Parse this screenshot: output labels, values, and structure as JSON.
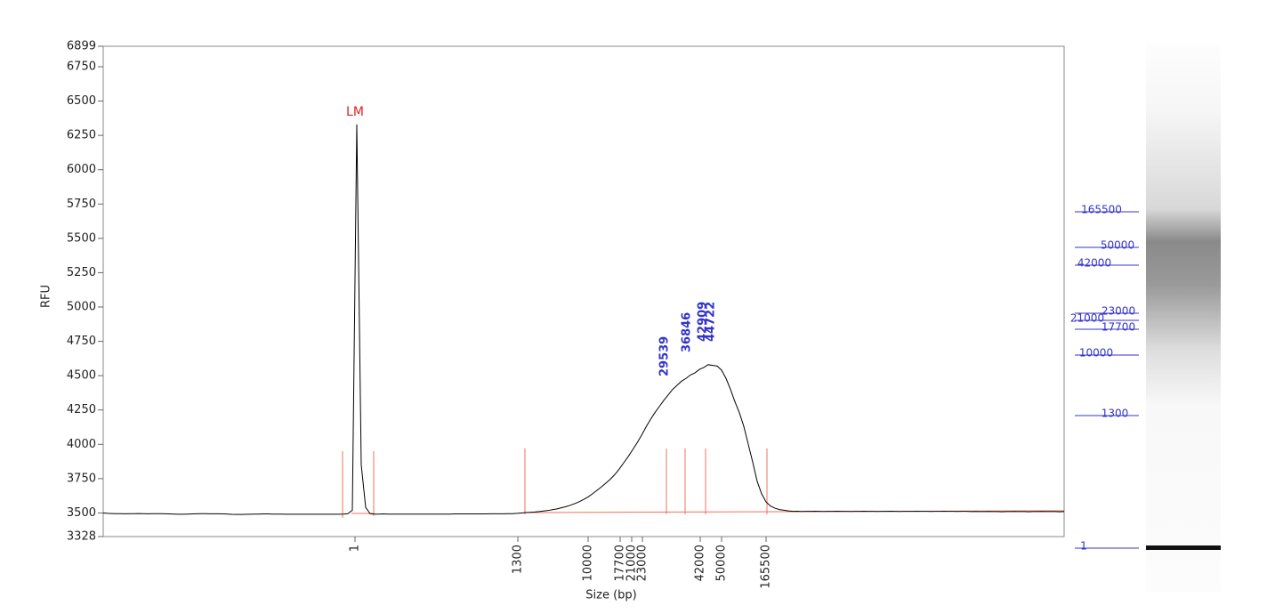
{
  "chart_data": {
    "type": "line",
    "ylabel": "RFU",
    "xlabel": "Size (bp)",
    "marker_label": "LM",
    "ylim": [
      3328,
      6899
    ],
    "yticks": [
      3328,
      3500,
      3750,
      4000,
      4250,
      4500,
      4750,
      5000,
      5250,
      5500,
      5750,
      6000,
      6250,
      6500,
      6750,
      6899
    ],
    "xticks": [
      1,
      1300,
      10000,
      17700,
      21000,
      23000,
      42000,
      50000,
      165500
    ],
    "color": "#000000",
    "trace": {
      "values": [
        3500,
        3497,
        3496,
        3495,
        3495,
        3494,
        3495,
        3495,
        3496,
        3495,
        3494,
        3495,
        3495,
        3495,
        3494,
        3493,
        3492,
        3491,
        3491,
        3492,
        3493,
        3494,
        3495,
        3495,
        3494,
        3494,
        3494,
        3493,
        3492,
        3490,
        3489,
        3489,
        3490,
        3491,
        3492,
        3492,
        3493,
        3493,
        3492,
        3492,
        3492,
        3491,
        3491,
        3491,
        3491,
        3491,
        3491,
        3491,
        3491,
        3491,
        3491,
        3491,
        3491,
        3491,
        3492,
        3495,
        3520,
        6330,
        3850,
        3540,
        3495,
        3492,
        3492,
        3493,
        3492,
        3492,
        3492,
        3492,
        3492,
        3492,
        3492,
        3492,
        3492,
        3492,
        3492,
        3492,
        3492,
        3492,
        3492,
        3493,
        3493,
        3493,
        3493,
        3493,
        3493,
        3493,
        3493,
        3494,
        3494,
        3494,
        3494,
        3495,
        3495,
        3497,
        3500,
        3503,
        3505,
        3507,
        3510,
        3514,
        3518,
        3524,
        3530,
        3538,
        3546,
        3556,
        3568,
        3582,
        3598,
        3617,
        3640,
        3665,
        3690,
        3718,
        3746,
        3780,
        3820,
        3865,
        3910,
        3960,
        4010,
        4065,
        4125,
        4180,
        4230,
        4275,
        4320,
        4360,
        4400,
        4430,
        4460,
        4480,
        4505,
        4520,
        4545,
        4560,
        4580,
        4575,
        4570,
        4540,
        4480,
        4400,
        4310,
        4230,
        4130,
        4000,
        3870,
        3730,
        3640,
        3580,
        3550,
        3535,
        3525,
        3520,
        3515,
        3512,
        3513,
        3511,
        3512,
        3512,
        3513,
        3512,
        3511,
        3512,
        3512,
        3513,
        3512,
        3512,
        3511,
        3512,
        3512,
        3513,
        3512,
        3512,
        3511,
        3512,
        3512,
        3513,
        3512,
        3511,
        3512,
        3512,
        3512,
        3513,
        3512,
        3512,
        3511,
        3512,
        3512,
        3513,
        3512,
        3512,
        3511,
        3512,
        3512,
        3510,
        3511,
        3510,
        3510,
        3511,
        3510,
        3510,
        3509,
        3510,
        3510,
        3511,
        3510,
        3510,
        3509,
        3510,
        3510,
        3511,
        3510,
        3510,
        3510,
        3509,
        3510
      ]
    },
    "peak_labels": [
      29539,
      36846,
      42909,
      44722
    ],
    "gel_ladder": [
      165500,
      50000,
      42000,
      23000,
      21000,
      17700,
      10000,
      1300,
      1
    ]
  }
}
